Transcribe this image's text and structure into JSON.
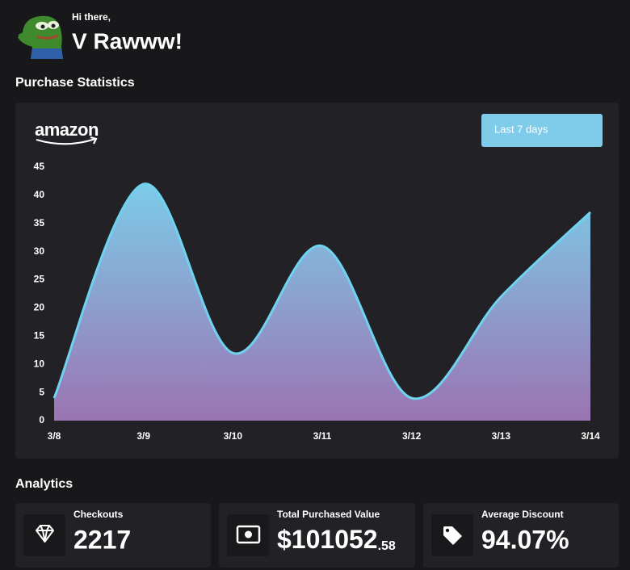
{
  "header": {
    "greeting": "Hi there,",
    "name": "V Rawww!"
  },
  "purchase_statistics": {
    "title": "Purchase Statistics",
    "brand": "amazon",
    "range_button": "Last 7 days"
  },
  "chart_data": {
    "type": "area",
    "categories": [
      "3/8",
      "3/9",
      "3/10",
      "3/11",
      "3/12",
      "3/13",
      "3/14"
    ],
    "values": [
      4,
      42,
      12,
      31,
      4,
      22,
      37
    ],
    "ylim": [
      0,
      45
    ],
    "yticks": [
      0,
      5,
      10,
      15,
      20,
      25,
      30,
      35,
      40,
      45
    ],
    "line_color": "#6fd3f0",
    "fill_top": "#7ccbe8",
    "fill_bottom": "#9b74b3"
  },
  "analytics": {
    "title": "Analytics",
    "cards": [
      {
        "label": "Checkouts",
        "value": "2217"
      },
      {
        "label": "Total Purchased Value",
        "value": "$101052",
        "cents": ".58"
      },
      {
        "label": "Average Discount",
        "value": "94.07%"
      }
    ]
  }
}
